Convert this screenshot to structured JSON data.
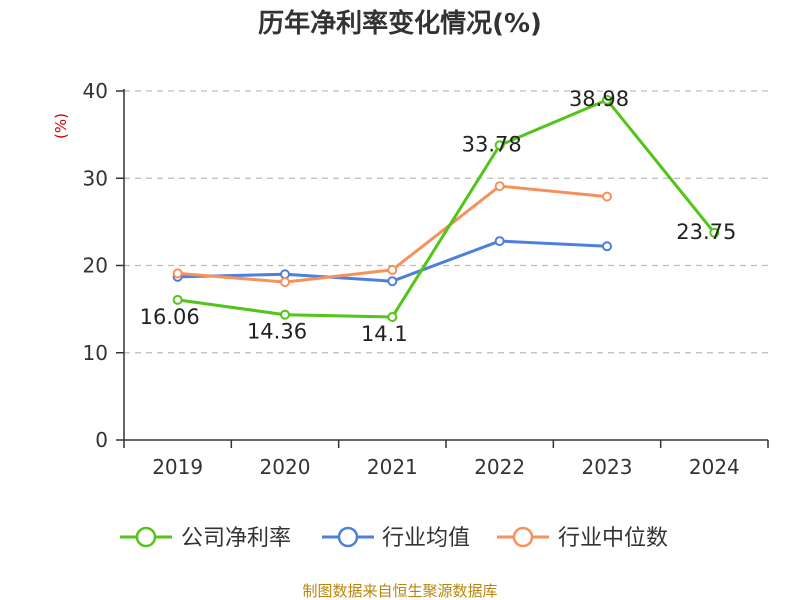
{
  "chart_data": {
    "type": "line",
    "title": "历年净利率变化情况(%)",
    "ylabel": "(%)",
    "xlabel": "",
    "categories": [
      "2019",
      "2020",
      "2021",
      "2022",
      "2023",
      "2024"
    ],
    "ylim": [
      0,
      40
    ],
    "yticks": [
      "0",
      "10",
      "20",
      "30",
      "40"
    ],
    "grid": "horizontal dashed",
    "legend_position": "bottom",
    "series": [
      {
        "name": "公司净利率",
        "color": "#52c41a",
        "values": [
          16.06,
          14.36,
          14.1,
          33.78,
          38.98,
          23.75
        ],
        "labels": [
          "16.06",
          "14.36",
          "14.1",
          "33.78",
          "38.98",
          "23.75"
        ]
      },
      {
        "name": "行业均值",
        "color": "#4e7fdc",
        "values": [
          18.7,
          19.0,
          18.2,
          22.8,
          22.2,
          null
        ]
      },
      {
        "name": "行业中位数",
        "color": "#f7915b",
        "values": [
          19.1,
          18.1,
          19.5,
          29.1,
          27.9,
          null
        ]
      }
    ],
    "source": "制图数据来自恒生聚源数据库"
  },
  "colors": {
    "ylabel": "#cc0000",
    "source": "#b8860b",
    "axis": "#333333",
    "grid": "#bbbbbb"
  }
}
